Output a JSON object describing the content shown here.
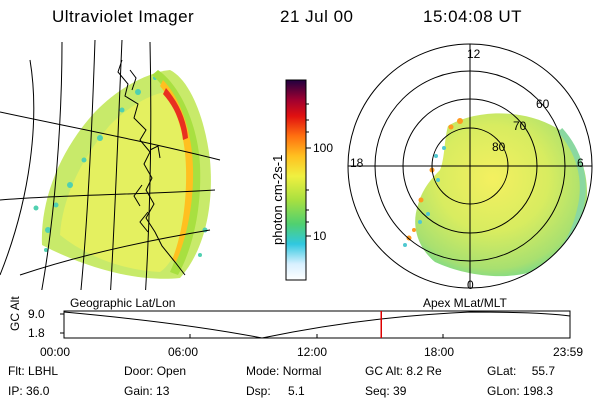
{
  "header": {
    "title": "Ultraviolet Imager",
    "date": "21 Jul 00",
    "time": "15:04:08 UT"
  },
  "colors": {
    "background": "#ffffff",
    "line": "#000000",
    "cursor": "#dd0000"
  },
  "colorbar": {
    "label": "photon cm-2s-1",
    "ticks": [
      "100",
      "10"
    ]
  },
  "left_map": {
    "caption": "Geographic Lat/Lon"
  },
  "polar_map": {
    "caption": "Apex MLat/MLT",
    "mlt_labels": [
      "12",
      "18",
      "6",
      "0"
    ],
    "lat_labels": [
      "60",
      "70",
      "80"
    ]
  },
  "timeline": {
    "axis_label": "GC Alt",
    "y_ticks": [
      "9.0",
      "1.8"
    ],
    "x_ticks": [
      "00:00",
      "06:00",
      "12:00",
      "18:00",
      "23:59"
    ],
    "cursor_fraction": 0.627
  },
  "status": {
    "filter_label": "Flt:",
    "filter_value": "LBHL",
    "ip_label": "IP:",
    "ip_value": "36.0",
    "door_label": "Door:",
    "door_value": "Open",
    "gain_label": "Gain:",
    "gain_value": "13",
    "mode_label": "Mode:",
    "mode_value": "Normal",
    "dsp_label": "Dsp:",
    "dsp_value": "5.1",
    "gcalt_label": "GC Alt:",
    "gcalt_value": "8.2 Re",
    "seq_label": "Seq:",
    "seq_value": "39",
    "glat_label": "GLat:",
    "glat_value": "55.7",
    "glon_label": "GLon:",
    "glon_value": "198.3"
  }
}
